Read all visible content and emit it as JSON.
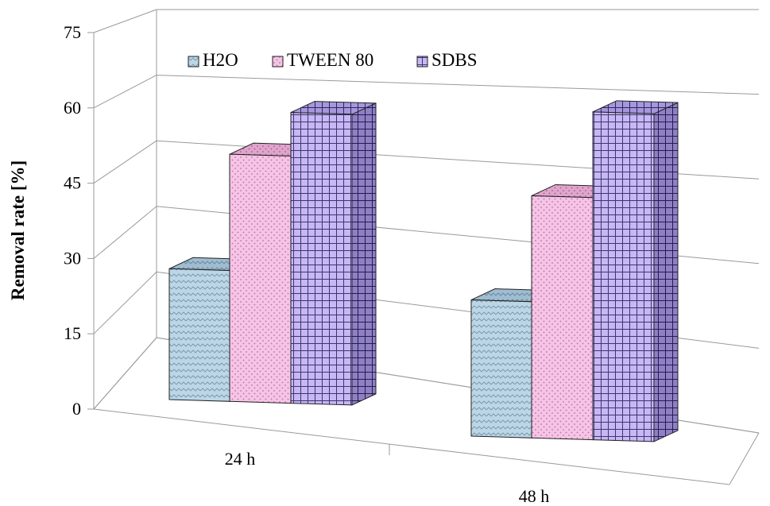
{
  "chart_data": {
    "type": "bar",
    "categories": [
      "24 h",
      "48 h"
    ],
    "series": [
      {
        "name": "H2O",
        "values": [
          27,
          27
        ],
        "color": "#bcd6e6"
      },
      {
        "name": "TWEEN 80",
        "values": [
          51,
          48
        ],
        "color": "#f7c3e6"
      },
      {
        "name": "SDBS",
        "values": [
          60,
          65
        ],
        "color": "#c7b7f2"
      }
    ],
    "ylabel": "Removal rate [%]",
    "xlabel": "",
    "title": "",
    "ylim": [
      0,
      75
    ],
    "yticks": [
      0,
      15,
      30,
      45,
      60,
      75
    ],
    "grid": true,
    "legend_position": "top-left",
    "style": "3d-clustered-column"
  }
}
